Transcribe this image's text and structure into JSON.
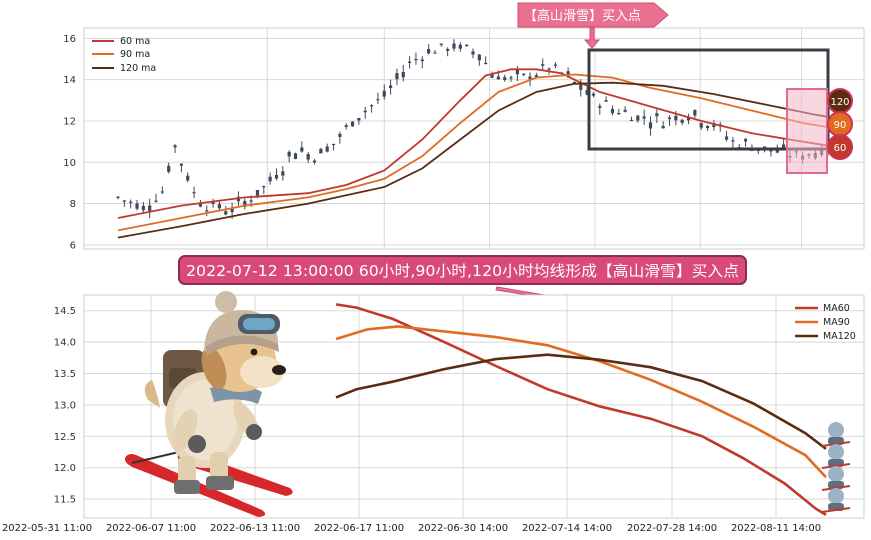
{
  "colors": {
    "ma60": "#c0392b",
    "ma90": "#e06b21",
    "ma120": "#5a2c10",
    "candle": "#3d4a5c",
    "banner_fill": "#d94a7a",
    "grid": "#d8d8d8"
  },
  "top_callout": {
    "text": "【高山滑雪】买入点"
  },
  "middle_callout": {
    "text": "2022-07-12 13:00:00 60小时,90小时,120小时均线形成【高山滑雪】买入点"
  },
  "badges": [
    "120",
    "90",
    "60"
  ],
  "chart_data": [
    {
      "type": "candlestick",
      "title": "",
      "yticks": [
        6,
        8,
        10,
        12,
        14,
        16
      ],
      "ylim": [
        5.8,
        16.5
      ],
      "x_count": 120,
      "legend": {
        "position": "top-left",
        "entries": [
          "60 ma",
          "90 ma",
          "120 ma"
        ]
      },
      "price_path": [
        [
          0,
          8.3
        ],
        [
          4,
          7.8
        ],
        [
          7,
          8.6
        ],
        [
          9,
          10.8
        ],
        [
          10,
          10.0
        ],
        [
          12,
          8.5
        ],
        [
          14,
          7.9
        ],
        [
          18,
          7.7
        ],
        [
          22,
          8.5
        ],
        [
          25,
          9.4
        ],
        [
          28,
          10.6
        ],
        [
          31,
          10.3
        ],
        [
          34,
          10.9
        ],
        [
          38,
          12.3
        ],
        [
          42,
          13.2
        ],
        [
          46,
          14.8
        ],
        [
          49,
          15.4
        ],
        [
          53,
          15.6
        ],
        [
          57,
          15.3
        ],
        [
          59,
          14.3
        ],
        [
          62,
          14.0
        ],
        [
          65,
          14.2
        ],
        [
          68,
          14.6
        ],
        [
          71,
          14.1
        ],
        [
          74,
          13.3
        ],
        [
          78,
          12.6
        ],
        [
          82,
          12.2
        ],
        [
          86,
          12.0
        ],
        [
          90,
          12.4
        ],
        [
          94,
          11.8
        ],
        [
          97,
          11.0
        ],
        [
          100,
          10.8
        ],
        [
          104,
          10.5
        ],
        [
          108,
          10.3
        ],
        [
          112,
          10.7
        ]
      ],
      "series": [
        {
          "name": "60 ma",
          "points": [
            [
              0,
              7.3
            ],
            [
              10,
              7.9
            ],
            [
              20,
              8.3
            ],
            [
              30,
              8.5
            ],
            [
              36,
              8.9
            ],
            [
              42,
              9.6
            ],
            [
              48,
              11.1
            ],
            [
              54,
              13.0
            ],
            [
              58,
              14.2
            ],
            [
              62,
              14.5
            ],
            [
              66,
              14.5
            ],
            [
              70,
              14.3
            ],
            [
              76,
              13.4
            ],
            [
              84,
              12.7
            ],
            [
              92,
              12.0
            ],
            [
              100,
              11.4
            ],
            [
              108,
              11.0
            ],
            [
              112,
              10.8
            ]
          ]
        },
        {
          "name": "90 ma",
          "points": [
            [
              0,
              6.7
            ],
            [
              10,
              7.3
            ],
            [
              20,
              7.9
            ],
            [
              30,
              8.3
            ],
            [
              36,
              8.7
            ],
            [
              42,
              9.2
            ],
            [
              48,
              10.3
            ],
            [
              54,
              11.9
            ],
            [
              60,
              13.4
            ],
            [
              66,
              14.1
            ],
            [
              72,
              14.25
            ],
            [
              78,
              14.1
            ],
            [
              84,
              13.6
            ],
            [
              92,
              13.1
            ],
            [
              100,
              12.5
            ],
            [
              108,
              11.9
            ],
            [
              112,
              11.7
            ]
          ]
        },
        {
          "name": "120 ma",
          "points": [
            [
              0,
              6.35
            ],
            [
              10,
              6.9
            ],
            [
              20,
              7.5
            ],
            [
              30,
              8.0
            ],
            [
              36,
              8.4
            ],
            [
              42,
              8.8
            ],
            [
              48,
              9.7
            ],
            [
              54,
              11.1
            ],
            [
              60,
              12.5
            ],
            [
              66,
              13.4
            ],
            [
              72,
              13.8
            ],
            [
              78,
              13.85
            ],
            [
              86,
              13.7
            ],
            [
              94,
              13.3
            ],
            [
              102,
              12.8
            ],
            [
              110,
              12.3
            ],
            [
              112,
              12.2
            ]
          ]
        }
      ]
    },
    {
      "type": "line",
      "title": "",
      "yticks": [
        11.5,
        12.0,
        12.5,
        13.0,
        13.5,
        14.0,
        14.5
      ],
      "ylim": [
        11.2,
        14.75
      ],
      "x_ticks": [
        "2022-05-31 11:00",
        "2022-06-07 11:00",
        "2022-06-13 11:00",
        "2022-06-17 11:00",
        "2022-06-30 14:00",
        "2022-07-14 14:00",
        "2022-07-28 14:00",
        "2022-08-11 14:00"
      ],
      "xlim": [
        0,
        7.2
      ],
      "legend": {
        "position": "top-right",
        "entries": [
          "MA60",
          "MA90",
          "MA120"
        ]
      },
      "series": [
        {
          "name": "MA60",
          "points": [
            [
              2.45,
              14.6
            ],
            [
              2.65,
              14.55
            ],
            [
              3.0,
              14.37
            ],
            [
              3.5,
              14.0
            ],
            [
              4.0,
              13.62
            ],
            [
              4.5,
              13.25
            ],
            [
              5.0,
              12.98
            ],
            [
              5.5,
              12.78
            ],
            [
              6.0,
              12.5
            ],
            [
              6.4,
              12.15
            ],
            [
              6.8,
              11.75
            ],
            [
              7.1,
              11.35
            ],
            [
              7.2,
              11.25
            ]
          ]
        },
        {
          "name": "MA90",
          "points": [
            [
              2.45,
              14.05
            ],
            [
              2.75,
              14.2
            ],
            [
              3.05,
              14.25
            ],
            [
              3.5,
              14.17
            ],
            [
              4.0,
              14.08
            ],
            [
              4.5,
              13.95
            ],
            [
              5.0,
              13.7
            ],
            [
              5.5,
              13.4
            ],
            [
              6.0,
              13.05
            ],
            [
              6.5,
              12.65
            ],
            [
              7.0,
              12.2
            ],
            [
              7.2,
              11.85
            ]
          ]
        },
        {
          "name": "MA120",
          "points": [
            [
              2.45,
              13.12
            ],
            [
              2.65,
              13.25
            ],
            [
              3.0,
              13.37
            ],
            [
              3.5,
              13.57
            ],
            [
              4.0,
              13.73
            ],
            [
              4.5,
              13.8
            ],
            [
              5.0,
              13.72
            ],
            [
              5.5,
              13.6
            ],
            [
              6.0,
              13.38
            ],
            [
              6.5,
              13.02
            ],
            [
              7.0,
              12.55
            ],
            [
              7.2,
              12.3
            ]
          ]
        }
      ]
    }
  ]
}
